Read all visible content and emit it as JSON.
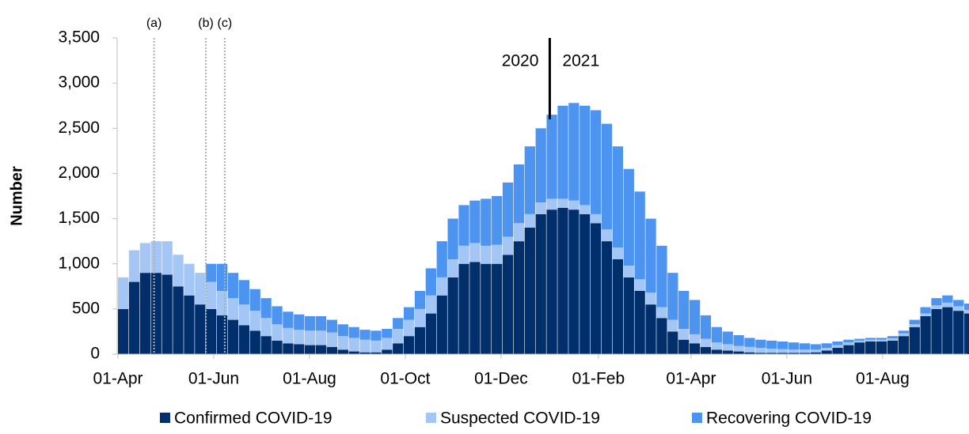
{
  "chart_data": {
    "type": "stacked_bar",
    "y_axis_label": "Number",
    "x": [
      0,
      7,
      14,
      21,
      28,
      35,
      42,
      49,
      56,
      63,
      70,
      77,
      84,
      91,
      98,
      105,
      112,
      119,
      126,
      133,
      140,
      147,
      154,
      161,
      168,
      175,
      182,
      189,
      196,
      203,
      210,
      217,
      224,
      231,
      238,
      245,
      252,
      259,
      266,
      273,
      280,
      287,
      294,
      301,
      308,
      315,
      322,
      329,
      336,
      343,
      350,
      357,
      364,
      371,
      378,
      385,
      392,
      399,
      406,
      413,
      420,
      427,
      434,
      441,
      448,
      455,
      462,
      469,
      476,
      483,
      490,
      497,
      504,
      511,
      518,
      525,
      532,
      539
    ],
    "xlim": [
      -0.5,
      541
    ],
    "xticks": [
      {
        "value": 0,
        "label": "01-Apr"
      },
      {
        "value": 61,
        "label": "01-Jun"
      },
      {
        "value": 122,
        "label": "01-Aug"
      },
      {
        "value": 183,
        "label": "01-Oct"
      },
      {
        "value": 244,
        "label": "01-Dec"
      },
      {
        "value": 306,
        "label": "01-Feb"
      },
      {
        "value": 365,
        "label": "01-Apr"
      },
      {
        "value": 426,
        "label": "01-Jun"
      },
      {
        "value": 487,
        "label": "01-Aug"
      }
    ],
    "ylim": [
      0,
      3500
    ],
    "yticks": [
      0,
      500,
      {
        "value": 1000,
        "label": "1,000"
      },
      {
        "value": 1500,
        "label": "1,500"
      },
      {
        "value": 2000,
        "label": "2,000"
      },
      {
        "value": 2500,
        "label": "2,500"
      },
      {
        "value": 3000,
        "label": "3,000"
      },
      {
        "value": 3500,
        "label": "3,500"
      }
    ],
    "series": [
      {
        "name": "Confirmed COVID-19",
        "color": "#002f6c",
        "values": [
          500,
          800,
          900,
          900,
          880,
          750,
          650,
          550,
          500,
          430,
          380,
          320,
          260,
          200,
          150,
          120,
          110,
          100,
          100,
          80,
          50,
          30,
          20,
          20,
          50,
          120,
          200,
          300,
          450,
          650,
          850,
          1000,
          1020,
          1000,
          1000,
          1100,
          1250,
          1400,
          1550,
          1600,
          1620,
          1600,
          1550,
          1450,
          1250,
          1050,
          850,
          700,
          550,
          400,
          250,
          160,
          120,
          80,
          50,
          40,
          30,
          20,
          15,
          15,
          15,
          15,
          15,
          20,
          40,
          70,
          100,
          130,
          140,
          140,
          150,
          200,
          300,
          420,
          500,
          520,
          480,
          450
        ]
      },
      {
        "name": "Suspected COVID-19",
        "color": "#a3c6f4",
        "values": [
          350,
          350,
          330,
          350,
          370,
          350,
          350,
          350,
          300,
          270,
          240,
          230,
          220,
          200,
          180,
          170,
          160,
          160,
          160,
          160,
          150,
          150,
          140,
          130,
          130,
          160,
          180,
          200,
          200,
          200,
          200,
          200,
          210,
          200,
          210,
          200,
          200,
          150,
          130,
          120,
          100,
          100,
          100,
          100,
          130,
          130,
          130,
          130,
          130,
          120,
          130,
          120,
          100,
          90,
          80,
          70,
          60,
          60,
          55,
          45,
          40,
          35,
          35,
          30,
          30,
          30,
          30,
          20,
          20,
          20,
          25,
          30,
          30,
          30,
          40,
          50,
          50,
          40
        ]
      },
      {
        "name": "Recovering COVID-19",
        "color": "#4d94f0",
        "values": [
          0,
          0,
          0,
          0,
          0,
          0,
          0,
          0,
          200,
          300,
          280,
          270,
          240,
          220,
          200,
          180,
          170,
          160,
          160,
          140,
          130,
          120,
          110,
          110,
          100,
          120,
          140,
          200,
          300,
          400,
          450,
          450,
          470,
          520,
          540,
          600,
          650,
          750,
          820,
          930,
          1030,
          1080,
          1100,
          1150,
          1170,
          1120,
          1070,
          970,
          820,
          680,
          520,
          420,
          380,
          260,
          170,
          140,
          120,
          100,
          90,
          90,
          85,
          80,
          70,
          60,
          50,
          40,
          30,
          20,
          20,
          20,
          25,
          30,
          50,
          70,
          80,
          80,
          70,
          70
        ]
      }
    ],
    "bar_width": 7,
    "annotations": [
      {
        "text": "(a)",
        "x": 23
      },
      {
        "text": "(b)",
        "x": 56
      },
      {
        "text": "(c)",
        "x": 68
      }
    ],
    "year_divider": {
      "x": 275,
      "left": "2020",
      "right": "2021",
      "top_value": 2600
    }
  }
}
